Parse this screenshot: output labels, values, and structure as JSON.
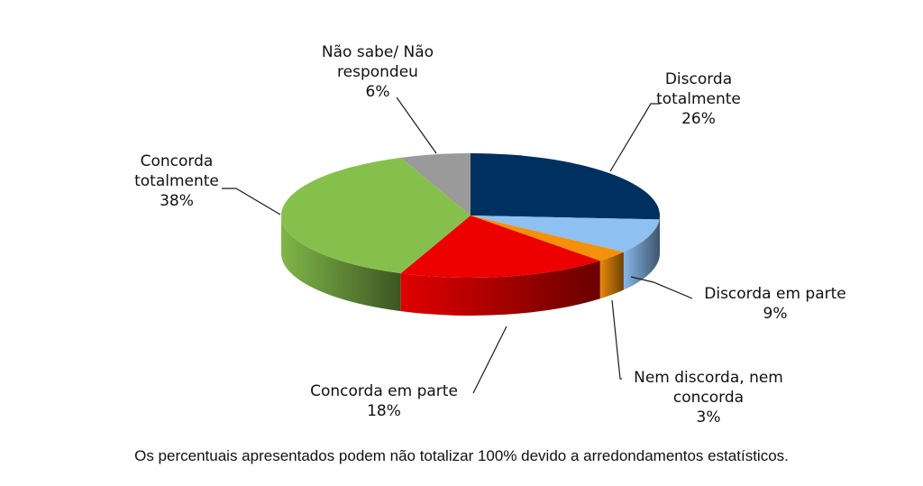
{
  "chart_data": {
    "type": "pie",
    "style": "3d",
    "slices": [
      {
        "label": [
          "Discorda",
          "totalmente"
        ],
        "value": 26,
        "value_label": "26%",
        "color": "#00305f"
      },
      {
        "label": [
          "Discorda em parte"
        ],
        "value": 9,
        "value_label": "9%",
        "color": "#8ec0f2"
      },
      {
        "label": [
          "Nem discorda, nem",
          "concorda"
        ],
        "value": 3,
        "value_label": "3%",
        "color": "#f5900b"
      },
      {
        "label": [
          "Concorda em parte"
        ],
        "value": 18,
        "value_label": "18%",
        "color": "#ec0000"
      },
      {
        "label": [
          "Concorda",
          "totalmente"
        ],
        "value": 38,
        "value_label": "38%",
        "color": "#86c04c"
      },
      {
        "label": [
          "Não sabe/ Não",
          "respondeu"
        ],
        "value": 6,
        "value_label": "6%",
        "color": "#9a9a9a"
      }
    ]
  },
  "footnote": "Os percentuais apresentados podem não totalizar 100% devido a arredondamentos estatísticos."
}
